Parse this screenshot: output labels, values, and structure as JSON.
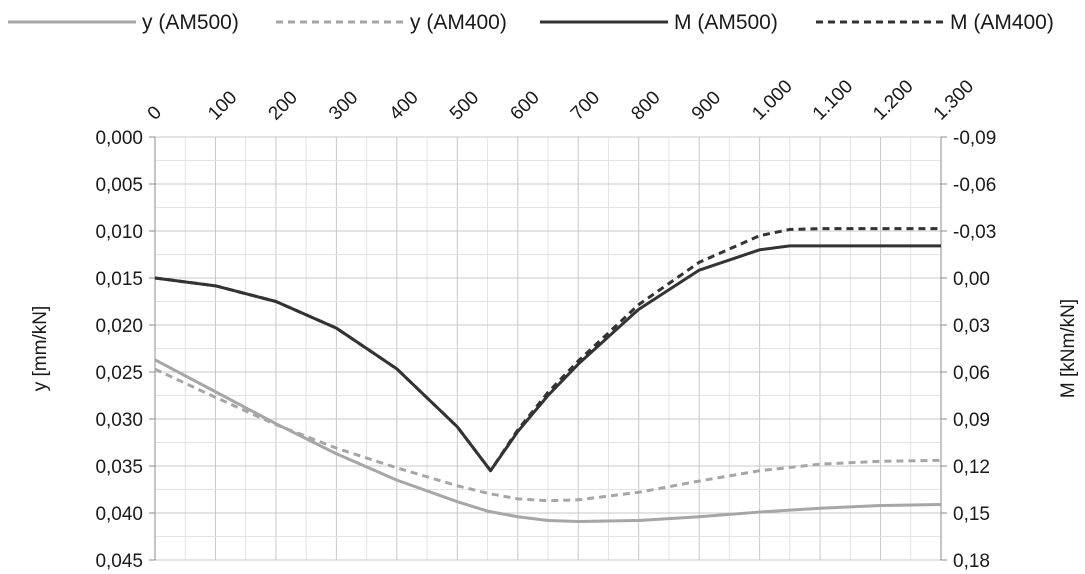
{
  "chart_data": {
    "type": "line",
    "title": "",
    "xlabel": "",
    "ylabel": "y [mm/kN]",
    "y2label": "M [kNm/kN]",
    "xlim": [
      0,
      1300
    ],
    "ylim": [
      0.045,
      0.0
    ],
    "y2lim": [
      0.18,
      -0.09
    ],
    "x_ticks": [
      "0",
      "100",
      "200",
      "300",
      "400",
      "500",
      "600",
      "700",
      "800",
      "900",
      "1.000",
      "1.100",
      "1.200",
      "1.300"
    ],
    "y_ticks": [
      "0,000",
      "0,005",
      "0,010",
      "0,015",
      "0,020",
      "0,025",
      "0,030",
      "0,035",
      "0,040",
      "0,045"
    ],
    "y2_ticks": [
      "-0,09",
      "-0,06",
      "-0,03",
      "0,00",
      "0,03",
      "0,06",
      "0,09",
      "0,12",
      "0,15",
      "0,18"
    ],
    "grid": true,
    "legend_position": "top",
    "series": [
      {
        "name": "y (AM500)",
        "axis": "left",
        "style": "solid",
        "color": "#a6a6a6",
        "x": [
          0,
          100,
          200,
          300,
          400,
          500,
          550,
          600,
          650,
          700,
          800,
          900,
          1000,
          1100,
          1200,
          1300
        ],
        "y": [
          0.0237,
          0.0271,
          0.0305,
          0.0337,
          0.0365,
          0.0388,
          0.0398,
          0.0404,
          0.0408,
          0.0409,
          0.0408,
          0.0404,
          0.0399,
          0.0395,
          0.0392,
          0.0391
        ]
      },
      {
        "name": "y (AM400)",
        "axis": "left",
        "style": "dashed",
        "color": "#a6a6a6",
        "x": [
          0,
          100,
          200,
          300,
          400,
          500,
          550,
          600,
          650,
          700,
          800,
          900,
          1000,
          1100,
          1200,
          1300
        ],
        "y": [
          0.0247,
          0.0277,
          0.0306,
          0.0331,
          0.0352,
          0.0371,
          0.0379,
          0.0385,
          0.0387,
          0.0386,
          0.0378,
          0.0366,
          0.0355,
          0.0348,
          0.0345,
          0.0344
        ]
      },
      {
        "name": "M (AM500)",
        "axis": "right",
        "style": "solid",
        "color": "#333333",
        "x": [
          0,
          100,
          200,
          300,
          400,
          500,
          555,
          600,
          650,
          700,
          800,
          900,
          1000,
          1050,
          1100,
          1200,
          1300
        ],
        "y": [
          0.0,
          0.005,
          0.015,
          0.032,
          0.058,
          0.095,
          0.123,
          0.098,
          0.075,
          0.055,
          0.02,
          -0.005,
          -0.018,
          -0.0205,
          -0.0205,
          -0.0205,
          -0.0205
        ]
      },
      {
        "name": "M (AM400)",
        "axis": "right",
        "style": "dashed",
        "color": "#333333",
        "x": [
          0,
          100,
          200,
          300,
          400,
          500,
          555,
          600,
          650,
          700,
          800,
          900,
          1000,
          1050,
          1100,
          1200,
          1300
        ],
        "y": [
          0.0,
          0.005,
          0.015,
          0.032,
          0.058,
          0.095,
          0.123,
          0.097,
          0.073,
          0.053,
          0.017,
          -0.01,
          -0.027,
          -0.031,
          -0.0315,
          -0.0315,
          -0.0315
        ]
      }
    ]
  }
}
